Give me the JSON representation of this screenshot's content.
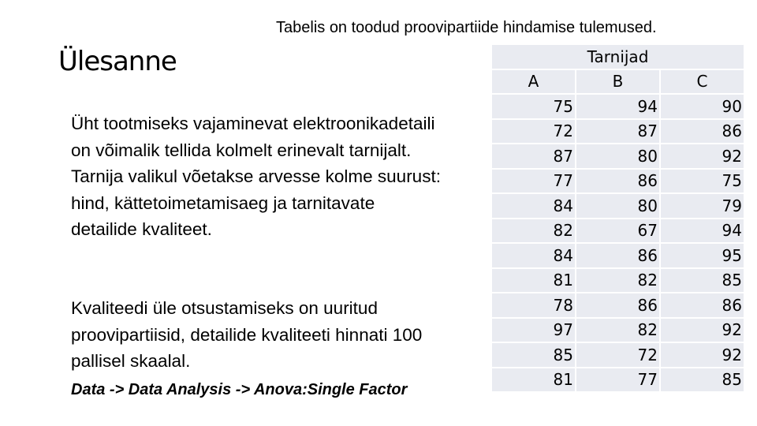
{
  "subtitle": "Tabelis on toodud proovipartiide hindamise tulemused.",
  "title": "Ülesanne",
  "paragraph1": "Üht tootmiseks vajaminevat elektroonikadetaili on võimalik tellida kolmelt erinevalt tarnijalt. Tarnija valikul võetakse arvesse kolme suurust: hind, kättetoimetamisaeg ja tarnitavate detailide kvaliteet.",
  "paragraph2": "Kvaliteedi üle otsustamiseks on uuritud proovipartiisid, detailide kvaliteeti hinnati 100 pallisel skaalal.",
  "instruction": "Data -> Data Analysis -> Anova:Single Factor",
  "table": {
    "group_header": "Tarnijad",
    "columns": [
      "A",
      "B",
      "C"
    ],
    "rows": [
      [
        "75",
        "94",
        "90"
      ],
      [
        "72",
        "87",
        "86"
      ],
      [
        "87",
        "80",
        "92"
      ],
      [
        "77",
        "86",
        "75"
      ],
      [
        "84",
        "80",
        "79"
      ],
      [
        "82",
        "67",
        "94"
      ],
      [
        "84",
        "86",
        "95"
      ],
      [
        "81",
        "82",
        "85"
      ],
      [
        "78",
        "86",
        "86"
      ],
      [
        "97",
        "82",
        "92"
      ],
      [
        "85",
        "72",
        "92"
      ],
      [
        "81",
        "77",
        "85"
      ]
    ]
  }
}
